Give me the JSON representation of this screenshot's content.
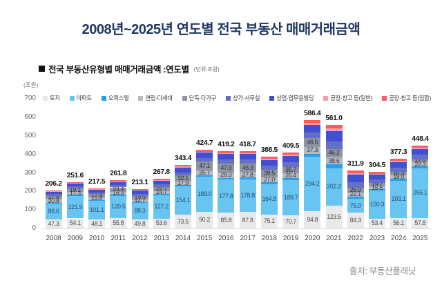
{
  "page": {
    "title": "2008년~2025년 연도별 전국 부동산 매매거래금액",
    "title_color": "#1f3864",
    "source": "출처: 부동산플래닛"
  },
  "chart": {
    "subtitle": "전국 부동산유형별 매매거래금액 :연도별",
    "subtitle_unit": "(단위:조원)",
    "axis_unit": "(조원)"
  },
  "chart_data": {
    "type": "bar",
    "stacked": true,
    "title": "전국 부동산유형별 매매거래금액 :연도별",
    "ylabel": "(조원)",
    "ylim": [
      0,
      700
    ],
    "yticks": [
      0,
      100,
      200,
      300,
      400,
      500,
      600,
      700
    ],
    "grid": false,
    "legend_position": "top",
    "categories": [
      "2008",
      "2009",
      "2010",
      "2011",
      "2012",
      "2013",
      "2014",
      "2015",
      "2016",
      "2017",
      "2018",
      "2019",
      "2020",
      "2021",
      "2022",
      "2023",
      "2024",
      "2025"
    ],
    "totals": [
      206.2,
      251.6,
      217.5,
      261.8,
      213.1,
      267.8,
      343.4,
      424.7,
      419.2,
      418.7,
      388.5,
      409.5,
      586.4,
      561.0,
      311.9,
      304.5,
      377.3,
      448.4
    ],
    "series": [
      {
        "name": "토지",
        "color": "#e8e9eb",
        "labeled": true,
        "label_color": "#4a4a4a",
        "values": [
          47.3,
          54.1,
          48.1,
          55.8,
          49.8,
          53.6,
          73.5,
          90.2,
          85.8,
          87.8,
          75.1,
          70.7,
          94.8,
          123.5,
          84.3,
          53.4,
          56.1,
          57.8
        ]
      },
      {
        "name": "아파트",
        "color": "#68c5f2",
        "labeled": true,
        "label_color": "#2d4a6b",
        "values": [
          86.6,
          121.9,
          101.1,
          120.5,
          88.3,
          127.2,
          154.1,
          189.0,
          177.8,
          178.8,
          164.8,
          189.7,
          294.2,
          202.2,
          75.0,
          150.3,
          203.1,
          266.1
        ]
      },
      {
        "name": "오피스텔",
        "color": "#2b9fe6",
        "labeled": false,
        "label_color": "#1d3b55",
        "values": [
          4.4,
          5.1,
          4.8,
          6.0,
          5.5,
          6.4,
          8.6,
          9.3,
          10.3,
          10.3,
          10.7,
          11.3,
          14.8,
          19.6,
          13.5,
          8.5,
          10.9,
          11.0
        ]
      },
      {
        "name": "연립·다세대",
        "color": "#b5b9c2",
        "labeled": true,
        "label_color": "#343842",
        "values": [
          20.8,
          17.3,
          13.8,
          16.3,
          12.7,
          14.7,
          17.9,
          26.7,
          28.3,
          27.8,
          27.0,
          26.4,
          37.3,
          38.6,
          22.1,
          15.8,
          18.0,
          22.3
        ]
      },
      {
        "name": "단독·다가구",
        "color": "#8e94a2",
        "labeled": true,
        "label_color": "#2b2f38",
        "values": [
          17.8,
          19.1,
          17.4,
          23.4,
          19.9,
          22.7,
          32.1,
          47.1,
          47.9,
          45.3,
          39.5,
          35.7,
          46.5,
          46.2,
          26.9,
          19.7,
          16.3,
          17.4
        ]
      },
      {
        "name": "상가·사무실",
        "color": "#6470c8",
        "labeled": false,
        "label_color": "#ffffff",
        "values": [
          9.1,
          10.6,
          10.0,
          12.4,
          11.4,
          13.4,
          17.8,
          19.4,
          21.4,
          21.3,
          22.2,
          23.5,
          30.7,
          40.6,
          28.0,
          17.6,
          22.6,
          22.9
        ]
      },
      {
        "name": "상업·업무용빌딩",
        "color": "#4150d2",
        "labeled": false,
        "label_color": "#ffffff",
        "values": [
          12.8,
          14.9,
          14.1,
          17.4,
          16.1,
          18.8,
          25.0,
          27.2,
          30.2,
          30.0,
          31.2,
          33.1,
          43.2,
          57.2,
          39.4,
          24.8,
          31.8,
          32.2
        ]
      },
      {
        "name": "공장·창고 등(일반)",
        "color": "#f49cab",
        "labeled": false,
        "label_color": "#ffffff",
        "values": [
          2.7,
          3.1,
          3.0,
          3.7,
          3.4,
          4.0,
          5.3,
          5.7,
          6.4,
          6.3,
          6.6,
          7.0,
          9.1,
          12.0,
          8.3,
          5.2,
          6.7,
          6.8
        ]
      },
      {
        "name": "공장·창고 등(집합)",
        "color": "#f25f66",
        "labeled": false,
        "label_color": "#ffffff",
        "values": [
          4.7,
          5.5,
          5.2,
          6.3,
          6.0,
          7.0,
          9.1,
          10.1,
          11.1,
          11.1,
          11.4,
          12.1,
          15.8,
          21.1,
          14.4,
          9.2,
          11.8,
          11.9
        ]
      }
    ]
  }
}
